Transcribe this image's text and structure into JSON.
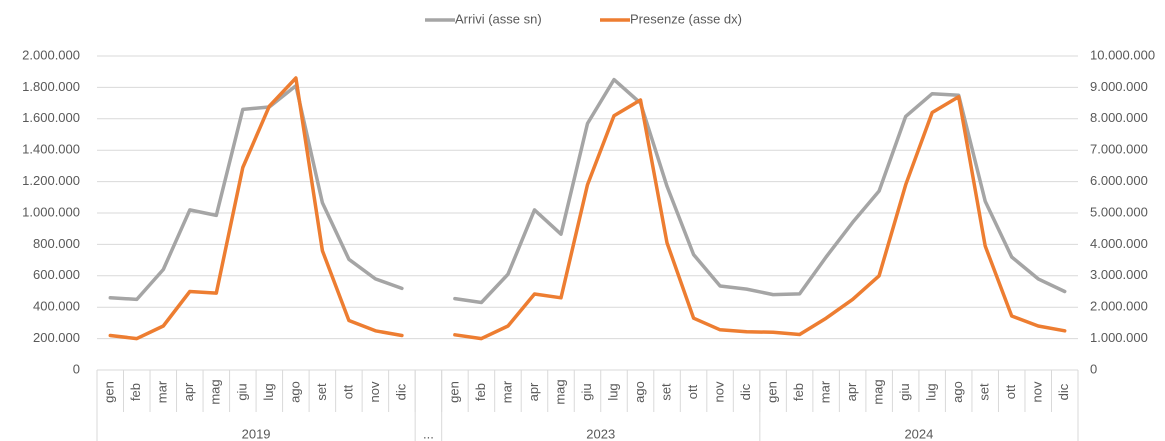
{
  "chart_data": {
    "type": "line",
    "categories": [
      "gen",
      "feb",
      "mar",
      "apr",
      "mag",
      "giu",
      "lug",
      "ago",
      "set",
      "ott",
      "nov",
      "dic",
      null,
      "gen",
      "feb",
      "mar",
      "apr",
      "mag",
      "giu",
      "lug",
      "ago",
      "set",
      "ott",
      "nov",
      "dic",
      "gen",
      "feb",
      "mar",
      "apr",
      "mag",
      "giu",
      "lug",
      "ago",
      "set",
      "ott",
      "nov",
      "dic"
    ],
    "groups": [
      {
        "label": "2019",
        "size": 12
      },
      {
        "label": "...",
        "size": 1
      },
      {
        "label": "2023",
        "size": 12
      },
      {
        "label": "2024",
        "size": 12
      }
    ],
    "series": [
      {
        "name": "Arrivi (asse sn)",
        "color": "#a5a5a5",
        "axis": "y",
        "values": [
          460000,
          450000,
          640000,
          1020000,
          985000,
          1660000,
          1675000,
          1810000,
          1065000,
          705000,
          580000,
          520000,
          null,
          455000,
          430000,
          610000,
          1020000,
          865000,
          1570000,
          1850000,
          1700000,
          1170000,
          735000,
          535000,
          515000,
          480000,
          485000,
          720000,
          940000,
          1140000,
          1615000,
          1760000,
          1750000,
          1075000,
          720000,
          580000,
          500000
        ]
      },
      {
        "name": "Presenze (asse dx)",
        "color": "#ed7d31",
        "axis": "y2",
        "values": [
          1100000,
          1000000,
          1400000,
          2500000,
          2450000,
          6450000,
          8400000,
          9300000,
          3800000,
          1575000,
          1250000,
          1100000,
          null,
          1120000,
          1000000,
          1400000,
          2420000,
          2300000,
          5900000,
          8100000,
          8600000,
          4050000,
          1650000,
          1280000,
          1220000,
          1200000,
          1130000,
          1650000,
          2250000,
          3000000,
          5900000,
          8200000,
          8700000,
          3950000,
          1720000,
          1400000,
          1250000
        ]
      }
    ],
    "ylim": [
      0,
      2000000
    ],
    "yticks": [
      0,
      {
        "value": 200000,
        "label": "200.000"
      },
      {
        "value": 400000,
        "label": "400.000"
      },
      {
        "value": 600000,
        "label": "600.000"
      },
      {
        "value": 800000,
        "label": "800.000"
      },
      {
        "value": 1000000,
        "label": "1.000.000"
      },
      {
        "value": 1200000,
        "label": "1.200.000"
      },
      {
        "value": 1400000,
        "label": "1.400.000"
      },
      {
        "value": 1600000,
        "label": "1.600.000"
      },
      {
        "value": 1800000,
        "label": "1.800.000"
      },
      {
        "value": 2000000,
        "label": "2.000.000"
      }
    ],
    "y2lim": [
      0,
      10000000
    ],
    "y2ticks": [
      0,
      {
        "value": 1000000,
        "label": "1.000.000"
      },
      {
        "value": 2000000,
        "label": "2.000.000"
      },
      {
        "value": 3000000,
        "label": "3.000.000"
      },
      {
        "value": 4000000,
        "label": "4.000.000"
      },
      {
        "value": 5000000,
        "label": "5.000.000"
      },
      {
        "value": 6000000,
        "label": "6.000.000"
      },
      {
        "value": 7000000,
        "label": "7.000.000"
      },
      {
        "value": 8000000,
        "label": "8.000.000"
      },
      {
        "value": 9000000,
        "label": "9.000.000"
      },
      {
        "value": 10000000,
        "label": "10.000.000"
      }
    ],
    "grid": true,
    "legend": "top"
  }
}
